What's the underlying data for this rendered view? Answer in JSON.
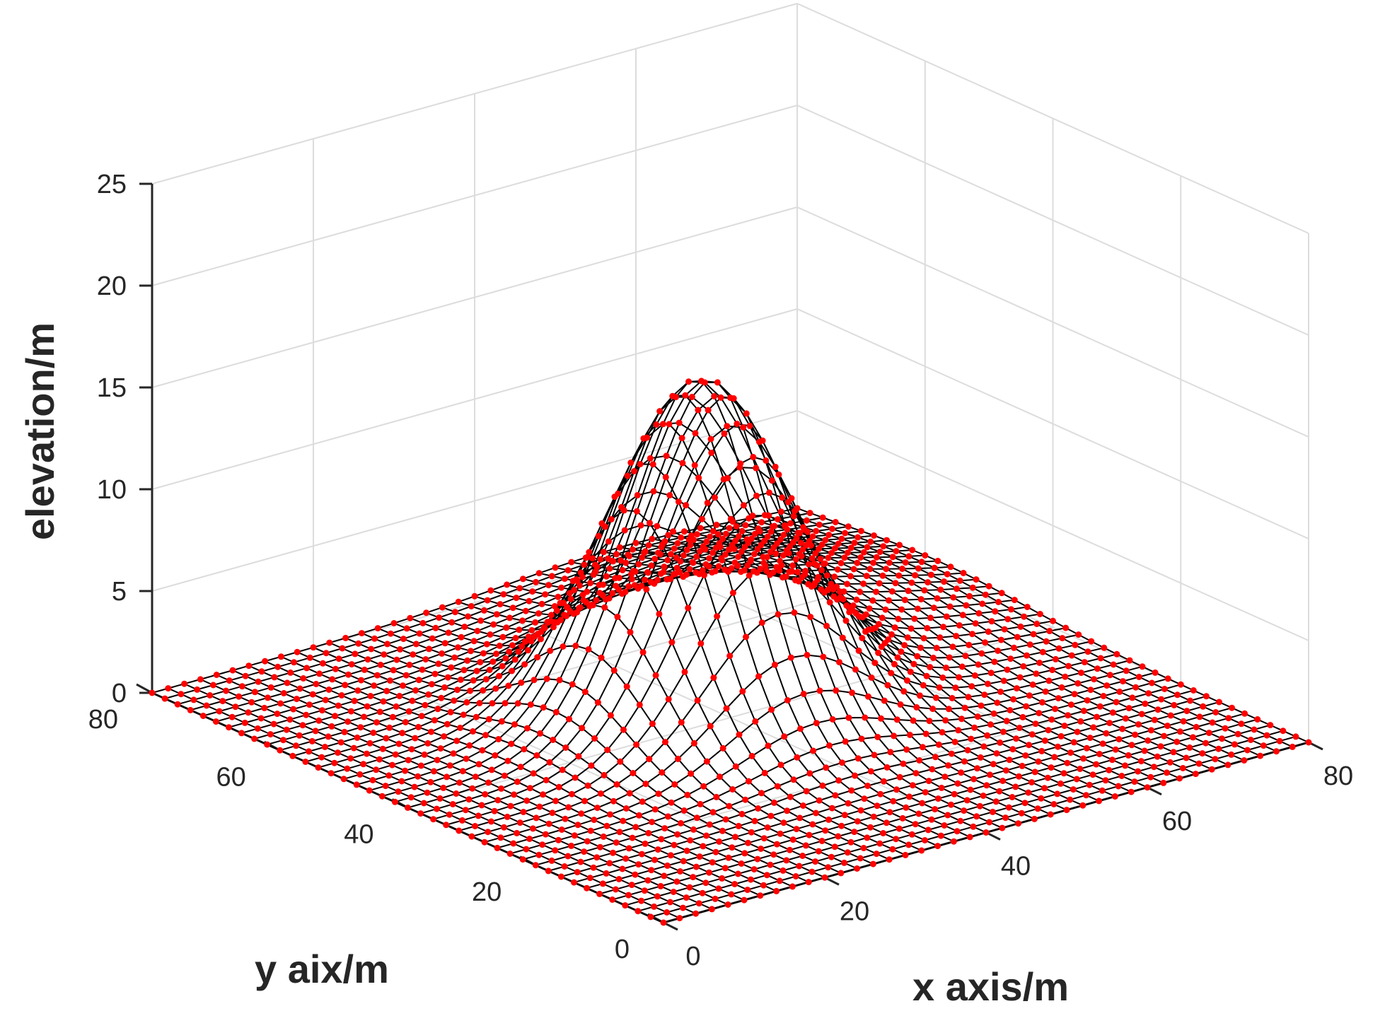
{
  "chart_data": {
    "type": "surface3d",
    "title": "",
    "xlabel": "x axis/m",
    "ylabel": "y aix/m",
    "zlabel": "elevation/m",
    "xlim": [
      0,
      80
    ],
    "ylim": [
      0,
      80
    ],
    "zlim": [
      0,
      25
    ],
    "xticks": [
      "0",
      "20",
      "40",
      "60",
      "80"
    ],
    "yticks": [
      "0",
      "20",
      "40",
      "60",
      "80"
    ],
    "zticks": [
      "0",
      "5",
      "10",
      "15",
      "20",
      "25"
    ],
    "grid": true,
    "mesh": {
      "grid_spacing": 2,
      "x_range": [
        0,
        80
      ],
      "y_range": [
        0,
        80
      ],
      "peak_center": [
        38,
        42
      ],
      "peak_height": 16,
      "peak_sigma": 9,
      "secondary_rise_height": 2.5,
      "line_color": "#000000",
      "node_color": "#ff0000"
    }
  }
}
